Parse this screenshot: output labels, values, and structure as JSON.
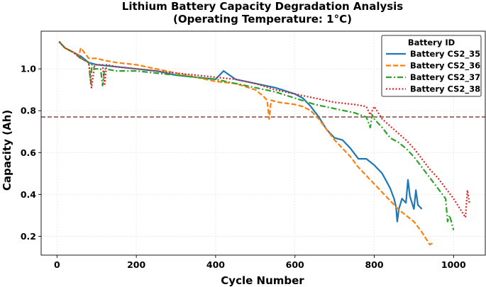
{
  "chart_data": {
    "type": "line",
    "title": "Lithium Battery Capacity Degradation Analysis",
    "subtitle": "(Operating Temperature: 1°C)",
    "xlabel": "Cycle Number",
    "ylabel": "Capacity (Ah)",
    "xlim": [
      -40,
      1080
    ],
    "ylim": [
      0.11,
      1.18
    ],
    "xticks": [
      0,
      200,
      400,
      600,
      800,
      1000
    ],
    "yticks": [
      0.2,
      0.4,
      0.6,
      0.8,
      1.0
    ],
    "ytick_labels": [
      "0.2",
      "0.4",
      "0.6",
      "0.8",
      "1.0"
    ],
    "grid": true,
    "legend": {
      "title": "Battery ID",
      "position": "top-right"
    },
    "reference_line": {
      "y": 0.77,
      "color": "#8c564b",
      "style": "dashed"
    },
    "series": [
      {
        "name": "Battery CS2_35",
        "color": "#1f77b4",
        "style": "solid",
        "x": [
          5,
          20,
          40,
          60,
          80,
          100,
          150,
          200,
          250,
          300,
          350,
          400,
          420,
          450,
          500,
          550,
          600,
          620,
          640,
          660,
          680,
          700,
          720,
          740,
          760,
          780,
          800,
          820,
          840,
          850,
          855,
          858,
          862,
          870,
          880,
          885,
          890,
          900,
          905,
          910,
          920
        ],
        "y": [
          1.13,
          1.1,
          1.08,
          1.06,
          1.03,
          1.02,
          1.01,
          1.0,
          0.99,
          0.97,
          0.96,
          0.95,
          0.99,
          0.95,
          0.93,
          0.91,
          0.88,
          0.86,
          0.82,
          0.77,
          0.71,
          0.67,
          0.66,
          0.62,
          0.57,
          0.57,
          0.54,
          0.5,
          0.43,
          0.38,
          0.34,
          0.27,
          0.33,
          0.38,
          0.36,
          0.47,
          0.39,
          0.33,
          0.42,
          0.35,
          0.33
        ]
      },
      {
        "name": "Battery CS2_36",
        "color": "#ff7f0e",
        "style": "dashed",
        "x": [
          5,
          20,
          40,
          55,
          60,
          80,
          100,
          120,
          150,
          200,
          250,
          300,
          350,
          400,
          450,
          500,
          520,
          530,
          535,
          540,
          560,
          600,
          620,
          640,
          660,
          680,
          700,
          720,
          740,
          760,
          780,
          800,
          820,
          840,
          860,
          880,
          900,
          920,
          930,
          940,
          950
        ],
        "y": [
          1.13,
          1.1,
          1.08,
          1.06,
          1.1,
          1.05,
          1.05,
          1.04,
          1.03,
          1.02,
          1.0,
          0.98,
          0.96,
          0.94,
          0.93,
          0.9,
          0.87,
          0.85,
          0.76,
          0.85,
          0.84,
          0.83,
          0.82,
          0.8,
          0.76,
          0.71,
          0.66,
          0.62,
          0.58,
          0.53,
          0.49,
          0.45,
          0.41,
          0.37,
          0.33,
          0.3,
          0.27,
          0.22,
          0.19,
          0.16,
          0.17
        ]
      },
      {
        "name": "Battery CS2_37",
        "color": "#2ca02c",
        "style": "dashdot",
        "x": [
          5,
          20,
          40,
          60,
          80,
          85,
          88,
          95,
          110,
          115,
          120,
          150,
          200,
          250,
          300,
          350,
          400,
          450,
          500,
          550,
          600,
          650,
          700,
          750,
          780,
          790,
          795,
          800,
          820,
          840,
          860,
          880,
          900,
          920,
          940,
          960,
          980,
          985,
          990,
          1000
        ],
        "y": [
          1.13,
          1.1,
          1.08,
          1.05,
          1.03,
          0.93,
          1.02,
          1.0,
          1.0,
          0.92,
          1.0,
          0.99,
          0.99,
          0.98,
          0.97,
          0.96,
          0.95,
          0.93,
          0.91,
          0.89,
          0.86,
          0.83,
          0.81,
          0.79,
          0.77,
          0.72,
          0.78,
          0.76,
          0.72,
          0.67,
          0.65,
          0.62,
          0.58,
          0.53,
          0.48,
          0.43,
          0.38,
          0.27,
          0.3,
          0.23
        ]
      },
      {
        "name": "Battery CS2_38",
        "color": "#d62728",
        "style": "dotted",
        "x": [
          5,
          20,
          40,
          60,
          80,
          87,
          95,
          115,
          120,
          125,
          150,
          200,
          250,
          300,
          350,
          400,
          450,
          500,
          550,
          600,
          650,
          700,
          750,
          780,
          790,
          800,
          820,
          850,
          880,
          900,
          920,
          940,
          960,
          980,
          1000,
          1020,
          1030,
          1035,
          1040
        ],
        "y": [
          1.13,
          1.1,
          1.08,
          1.05,
          1.03,
          0.91,
          1.02,
          1.02,
          0.92,
          1.02,
          1.01,
          1.0,
          0.99,
          0.98,
          0.97,
          0.96,
          0.95,
          0.93,
          0.9,
          0.88,
          0.86,
          0.84,
          0.83,
          0.82,
          0.78,
          0.82,
          0.76,
          0.71,
          0.66,
          0.62,
          0.57,
          0.52,
          0.48,
          0.43,
          0.38,
          0.32,
          0.29,
          0.42,
          0.36
        ]
      }
    ]
  }
}
